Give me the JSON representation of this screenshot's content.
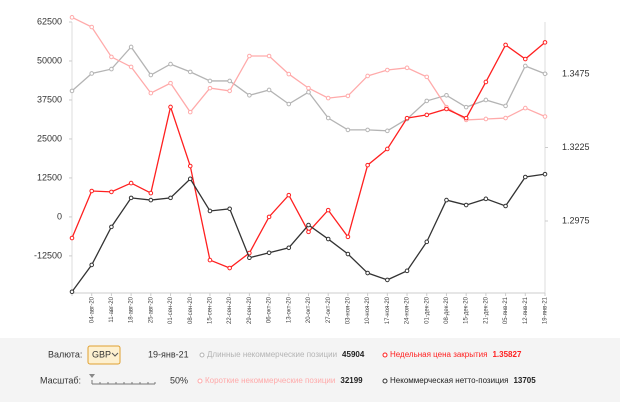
{
  "chart_data": {
    "type": "line",
    "categories": [
      null,
      "04-авг-20",
      "11-авг-20",
      "18-авг-20",
      "25-авг-20",
      "01-сен-20",
      "08-сен-20",
      "15-сен-20",
      "22-сен-20",
      "29-сен-20",
      "06-окт-20",
      "13-окт-20",
      "20-окт-20",
      "27-окт-20",
      "03-ноя-20",
      "10-ноя-20",
      "17-ноя-20",
      "24-ноя-20",
      "01-дек-20",
      "08-дек-20",
      "15-дек-20",
      "21-дек-20",
      "05-янв-21",
      "12-янв-21",
      "19-янв-21"
    ],
    "series": [
      {
        "name": "Длинные некоммерческие позиции",
        "color": "#b4b4b4",
        "values": [
          40400,
          46000,
          47400,
          54500,
          45500,
          49000,
          46500,
          43600,
          43600,
          39000,
          40700,
          36200,
          40000,
          31700,
          27900,
          27900,
          27600,
          31400,
          37200,
          39000,
          35200,
          37500,
          35600,
          48400,
          45904
        ]
      },
      {
        "name": "Короткие некоммерческие позиции",
        "color": "#ffaaaa",
        "values": [
          64000,
          60900,
          51300,
          48100,
          39700,
          42900,
          33600,
          41300,
          40400,
          51600,
          51600,
          45800,
          41300,
          38100,
          38800,
          45200,
          47100,
          47800,
          44900,
          35200,
          31100,
          31400,
          31700,
          34900,
          32199
        ]
      },
      {
        "name": "Недельная цена закрытия",
        "color": "#ff2020",
        "axis": "y2",
        "values": [
          1.2917,
          1.3077,
          1.3074,
          1.3104,
          1.307,
          1.3363,
          1.3162,
          1.2842,
          1.2815,
          1.2866,
          1.2989,
          1.3063,
          1.2938,
          1.3012,
          1.2921,
          1.3165,
          1.322,
          1.3325,
          1.3336,
          1.3356,
          1.3325,
          1.3448,
          1.3574,
          1.3526,
          1.35827
        ]
      },
      {
        "name": "Некоммерческая нетто-позиция",
        "color": "#333333",
        "values": [
          -24000,
          -15400,
          -3200,
          6100,
          5400,
          6100,
          12200,
          1900,
          2600,
          -13100,
          -11500,
          -9900,
          -2600,
          -7100,
          -11900,
          -18000,
          -20200,
          -17300,
          -8000,
          5400,
          3800,
          5800,
          3500,
          12800,
          13705
        ]
      }
    ],
    "ylim": [
      -24400,
      62500
    ],
    "yticks": [
      -12500,
      0,
      12500,
      25000,
      37500,
      50000,
      62500
    ],
    "y2lim": [
      1.273,
      1.3652
    ],
    "y2ticks": [
      1.2975,
      1.3225,
      1.3475
    ]
  },
  "controls": {
    "currency_label": "Валюта:",
    "currency": "GBP",
    "date": "19-янв-21",
    "scale_label": "Масштаб:",
    "scale": "50%"
  }
}
